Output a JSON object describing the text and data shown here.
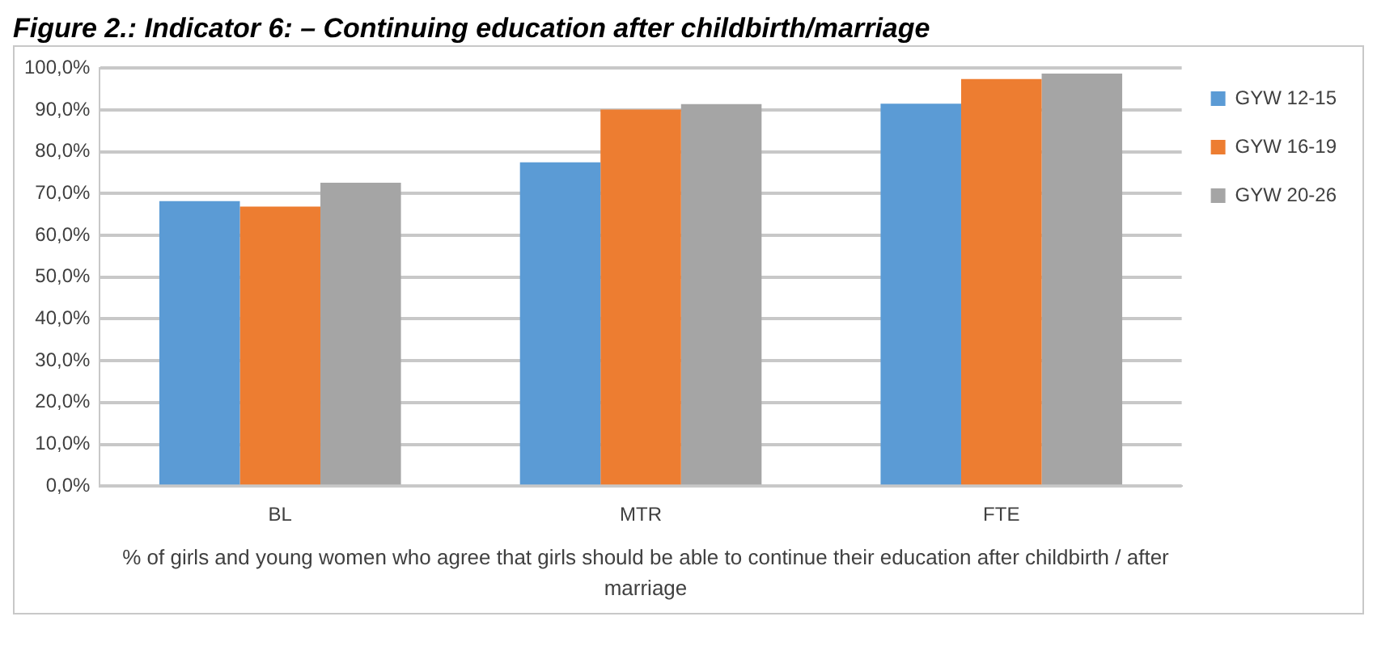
{
  "chart_data": {
    "type": "bar",
    "title": "Figure 2.: Indicator 6: – Continuing education after childbirth/marriage",
    "xlabel": "% of girls and young women who agree that girls should be able to continue their education after childbirth / after marriage",
    "categories": [
      "BL",
      "MTR",
      "FTE"
    ],
    "series": [
      {
        "name": "GYW 12-15",
        "color": "#5b9bd5",
        "values": [
          68.2,
          77.5,
          91.5
        ]
      },
      {
        "name": "GYW 16-19",
        "color": "#ed7d31",
        "values": [
          66.9,
          90.1,
          97.4
        ]
      },
      {
        "name": "GYW 20-26",
        "color": "#a5a5a5",
        "values": [
          72.6,
          91.4,
          98.7
        ]
      }
    ],
    "ylim": [
      0,
      100
    ],
    "yticks": [
      {
        "value": 0,
        "label": "0,0%"
      },
      {
        "value": 10,
        "label": "10,0%"
      },
      {
        "value": 20,
        "label": "20,0%"
      },
      {
        "value": 30,
        "label": "30,0%"
      },
      {
        "value": 40,
        "label": "40,0%"
      },
      {
        "value": 50,
        "label": "50,0%"
      },
      {
        "value": 60,
        "label": "60,0%"
      },
      {
        "value": 70,
        "label": "70,0%"
      },
      {
        "value": 80,
        "label": "80,0%"
      },
      {
        "value": 90,
        "label": "90,0%"
      },
      {
        "value": 100,
        "label": "100,0%"
      }
    ],
    "grid": "y",
    "legend": "right"
  }
}
